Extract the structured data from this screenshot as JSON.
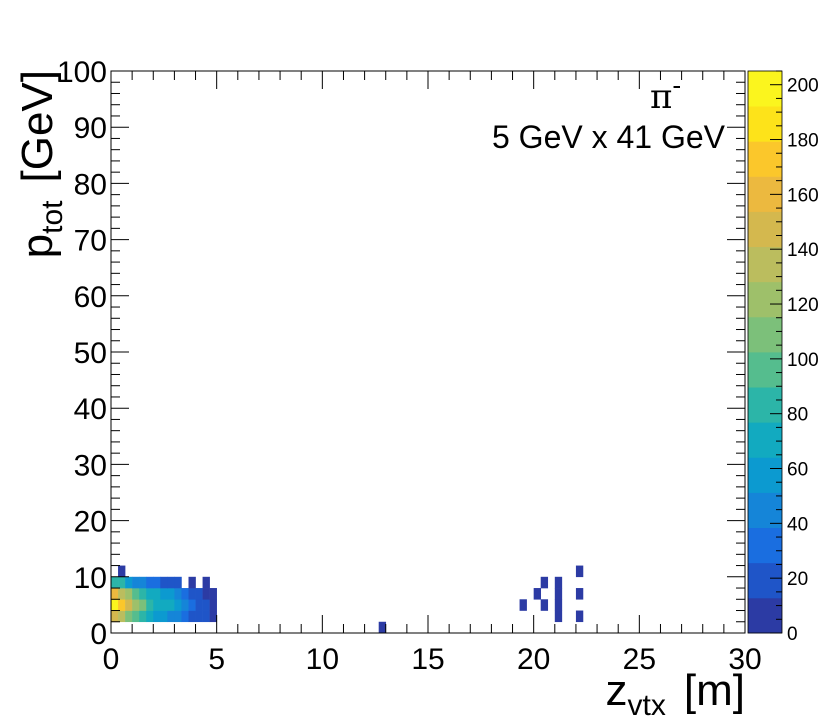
{
  "chart_data": {
    "type": "heatmap",
    "annotation_particle": "π",
    "annotation_charge": "-",
    "annotation_beam": "5 GeV x 41 GeV",
    "xlabel_main": "z",
    "xlabel_sub": "vtx",
    "xlabel_unit": "[m]",
    "ylabel_main": "p",
    "ylabel_sub": "tot",
    "ylabel_unit": "[GeV]",
    "xlim": [
      0,
      30
    ],
    "ylim": [
      0,
      100
    ],
    "zlim": [
      0,
      205
    ],
    "x_ticks": [
      0,
      5,
      10,
      15,
      20,
      25,
      30
    ],
    "y_ticks": [
      0,
      10,
      20,
      30,
      40,
      50,
      60,
      70,
      80,
      90,
      100
    ],
    "z_ticks": [
      0,
      20,
      40,
      60,
      80,
      100,
      120,
      140,
      160,
      180,
      200
    ],
    "bin_size": {
      "x": 0.3333,
      "y": 2.0
    },
    "palette": [
      "#2c3ba4",
      "#1f55c8",
      "#1a6ee0",
      "#1585d8",
      "#0c9ad0",
      "#12aac0",
      "#2cb5a8",
      "#55bd8e",
      "#7cc07a",
      "#9ec06a",
      "#bbbd5e",
      "#d4b84e",
      "#ecb93f",
      "#fbc72b",
      "#fde31a",
      "#fbf51e"
    ],
    "bins": [
      {
        "x": 0.0,
        "y": 2,
        "z": 150
      },
      {
        "x": 0.333,
        "y": 2,
        "z": 130
      },
      {
        "x": 0.667,
        "y": 2,
        "z": 110
      },
      {
        "x": 1.0,
        "y": 2,
        "z": 95
      },
      {
        "x": 1.333,
        "y": 2,
        "z": 80
      },
      {
        "x": 1.667,
        "y": 2,
        "z": 70
      },
      {
        "x": 2.0,
        "y": 2,
        "z": 60
      },
      {
        "x": 2.333,
        "y": 2,
        "z": 55
      },
      {
        "x": 2.667,
        "y": 2,
        "z": 50
      },
      {
        "x": 3.0,
        "y": 2,
        "z": 45
      },
      {
        "x": 3.333,
        "y": 2,
        "z": 35
      },
      {
        "x": 3.667,
        "y": 2,
        "z": 25
      },
      {
        "x": 4.0,
        "y": 2,
        "z": 20
      },
      {
        "x": 4.333,
        "y": 2,
        "z": 15
      },
      {
        "x": 4.667,
        "y": 2,
        "z": 10
      },
      {
        "x": 0.0,
        "y": 4,
        "z": 200
      },
      {
        "x": 0.333,
        "y": 4,
        "z": 175
      },
      {
        "x": 0.667,
        "y": 4,
        "z": 145
      },
      {
        "x": 1.0,
        "y": 4,
        "z": 125
      },
      {
        "x": 1.333,
        "y": 4,
        "z": 105
      },
      {
        "x": 1.667,
        "y": 4,
        "z": 85
      },
      {
        "x": 2.0,
        "y": 4,
        "z": 75
      },
      {
        "x": 2.333,
        "y": 4,
        "z": 70
      },
      {
        "x": 2.667,
        "y": 4,
        "z": 65
      },
      {
        "x": 3.0,
        "y": 4,
        "z": 55
      },
      {
        "x": 3.333,
        "y": 4,
        "z": 45
      },
      {
        "x": 3.667,
        "y": 4,
        "z": 35
      },
      {
        "x": 4.0,
        "y": 4,
        "z": 25
      },
      {
        "x": 4.333,
        "y": 4,
        "z": 15
      },
      {
        "x": 4.667,
        "y": 4,
        "z": 10
      },
      {
        "x": 0.0,
        "y": 6,
        "z": 160
      },
      {
        "x": 0.333,
        "y": 6,
        "z": 140
      },
      {
        "x": 0.667,
        "y": 6,
        "z": 120
      },
      {
        "x": 1.0,
        "y": 6,
        "z": 100
      },
      {
        "x": 1.333,
        "y": 6,
        "z": 85
      },
      {
        "x": 1.667,
        "y": 6,
        "z": 75
      },
      {
        "x": 2.0,
        "y": 6,
        "z": 65
      },
      {
        "x": 2.333,
        "y": 6,
        "z": 60
      },
      {
        "x": 2.667,
        "y": 6,
        "z": 55
      },
      {
        "x": 3.0,
        "y": 6,
        "z": 45
      },
      {
        "x": 3.333,
        "y": 6,
        "z": 35
      },
      {
        "x": 3.667,
        "y": 6,
        "z": 25
      },
      {
        "x": 4.0,
        "y": 6,
        "z": 15
      },
      {
        "x": 4.333,
        "y": 6,
        "z": 10
      },
      {
        "x": 4.667,
        "y": 6,
        "z": 5
      },
      {
        "x": 0.0,
        "y": 8,
        "z": 85
      },
      {
        "x": 0.333,
        "y": 8,
        "z": 80
      },
      {
        "x": 0.667,
        "y": 8,
        "z": 55
      },
      {
        "x": 1.0,
        "y": 8,
        "z": 45
      },
      {
        "x": 1.333,
        "y": 8,
        "z": 40
      },
      {
        "x": 1.667,
        "y": 8,
        "z": 35
      },
      {
        "x": 2.0,
        "y": 8,
        "z": 30
      },
      {
        "x": 2.333,
        "y": 8,
        "z": 25
      },
      {
        "x": 2.667,
        "y": 8,
        "z": 20
      },
      {
        "x": 3.0,
        "y": 8,
        "z": 15
      },
      {
        "x": 3.667,
        "y": 8,
        "z": 5
      },
      {
        "x": 4.333,
        "y": 8,
        "z": 3
      },
      {
        "x": 0.333,
        "y": 10,
        "z": 3
      },
      {
        "x": 12.667,
        "y": 0,
        "z": 3
      },
      {
        "x": 19.333,
        "y": 4,
        "z": 3
      },
      {
        "x": 20.0,
        "y": 6,
        "z": 3
      },
      {
        "x": 20.333,
        "y": 4,
        "z": 3
      },
      {
        "x": 20.333,
        "y": 8,
        "z": 3
      },
      {
        "x": 21.0,
        "y": 2,
        "z": 5
      },
      {
        "x": 21.0,
        "y": 4,
        "z": 5
      },
      {
        "x": 21.0,
        "y": 6,
        "z": 5
      },
      {
        "x": 21.0,
        "y": 8,
        "z": 5
      },
      {
        "x": 22.0,
        "y": 2,
        "z": 3
      },
      {
        "x": 22.0,
        "y": 6,
        "z": 3
      },
      {
        "x": 22.0,
        "y": 10,
        "z": 3
      }
    ]
  }
}
